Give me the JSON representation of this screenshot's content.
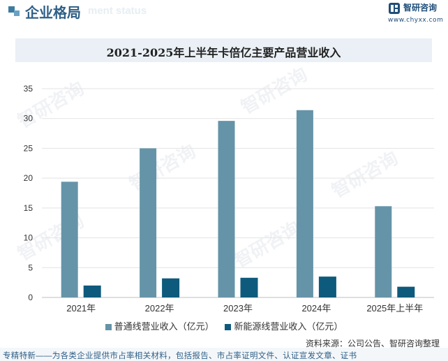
{
  "header": {
    "section_title": "企业格局",
    "section_subtitle": "ment status",
    "logo_text": "智研咨询",
    "logo_url": "www.chyxx.com"
  },
  "watermark": "智研咨询",
  "chart_data": {
    "type": "bar",
    "title": "2021-2025年上半年卡倍亿主要产品营业收入",
    "categories": [
      "2021年",
      "2022年",
      "2023年",
      "2024年",
      "2025年上半年"
    ],
    "series": [
      {
        "name": "普通线营业收入（亿元）",
        "color": "#6594a8",
        "values": [
          19.4,
          25.0,
          29.6,
          31.4,
          15.3
        ]
      },
      {
        "name": "新能源线营业收入（亿元）",
        "color": "#0e5a7c",
        "values": [
          2.0,
          3.2,
          3.3,
          3.5,
          1.8
        ]
      }
    ],
    "yticks": [
      "0",
      "5",
      "10",
      "15",
      "20",
      "25",
      "30",
      "35"
    ],
    "ylim": [
      0,
      35
    ],
    "grid": true,
    "legend_position": "bottom"
  },
  "source": "资料来源：公司公告、智研咨询整理",
  "footer": "专精特新——为各类企业提供市占率相关材料，包括报告、市占率证明文件、认证宣发文章、证书"
}
